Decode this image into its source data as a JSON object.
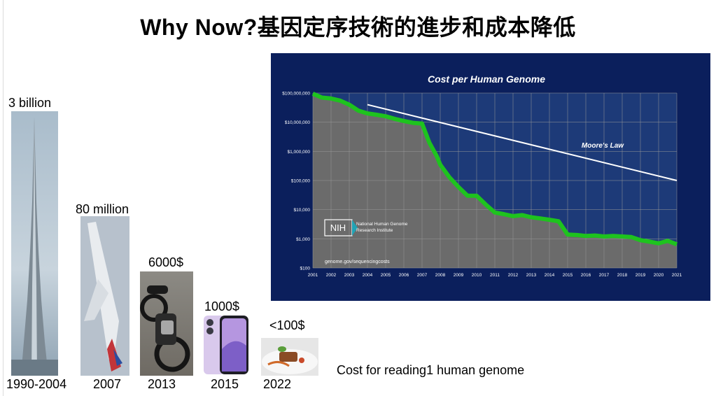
{
  "slide": {
    "title": "Why Now?基因定序技術的進步和成本降低",
    "caption": "Cost for reading1 human genome"
  },
  "items": [
    {
      "value_label": "3 billion",
      "year": "1990-2004",
      "image": "skyscraper"
    },
    {
      "value_label": "80 million",
      "year": "2007",
      "image": "airplane"
    },
    {
      "value_label": "6000$",
      "year": "2013",
      "image": "motorcycle"
    },
    {
      "value_label": "1000$",
      "year": "2015",
      "image": "smartphone"
    },
    {
      "value_label": "<100$",
      "year": "2022",
      "image": "plated-meal"
    }
  ],
  "chart_data": {
    "type": "line",
    "title": "Cost per Human Genome",
    "y_scale": "log",
    "ylim": [
      100,
      100000000
    ],
    "y_ticks": [
      "$100,000,000",
      "$10,000,000",
      "$1,000,000",
      "$100,000",
      "$10,000",
      "$1,000",
      "$100"
    ],
    "x_ticks": [
      "2001",
      "2002",
      "2003",
      "2004",
      "2005",
      "2006",
      "2007",
      "2008",
      "2009",
      "2010",
      "2011",
      "2012",
      "2013",
      "2014",
      "2015",
      "2016",
      "2017",
      "2018",
      "2019",
      "2020",
      "2021"
    ],
    "series": [
      {
        "x": [
          2001,
          2001.5,
          2002,
          2002.5,
          2003,
          2003.5,
          2004,
          2004.5,
          2005,
          2005.5,
          2006,
          2006.5,
          2007,
          2007.4,
          2007.8,
          2008,
          2008.5,
          2009,
          2009.5,
          2010,
          2010.5,
          2011,
          2011.5,
          2012,
          2012.5,
          2013,
          2013.5,
          2014,
          2014.5,
          2015,
          2015.5,
          2016,
          2016.5,
          2017,
          2017.5,
          2018,
          2018.5,
          2019,
          2019.5,
          2020,
          2020.5,
          2021
        ],
        "y": [
          95000000,
          70000000,
          65000000,
          55000000,
          40000000,
          25000000,
          20000000,
          18000000,
          16000000,
          13000000,
          11000000,
          9500000,
          9000000,
          2000000,
          700000,
          350000,
          130000,
          60000,
          30000,
          30000,
          15000,
          8000,
          7000,
          6000,
          6500,
          5500,
          5000,
          4500,
          4000,
          1400,
          1350,
          1250,
          1300,
          1200,
          1250,
          1200,
          1150,
          900,
          800,
          700,
          850,
          650
        ]
      },
      {
        "name": "Moore's Law",
        "x": [
          2004,
          2021
        ],
        "y": [
          40000000,
          100000
        ]
      }
    ],
    "annotations": [
      "Moore's Law",
      "genome.gov/sequencingcosts"
    ],
    "logo": {
      "mark": "NIH",
      "text_line1": "National Human Genome",
      "text_line2": "Research Institute"
    },
    "colors": {
      "background": "#0b1f5c",
      "plot_area": "#6b6b6b",
      "above_curve": "#1d3a78",
      "cost_band": "#1ec31e",
      "moore_line": "#ffffff"
    }
  }
}
